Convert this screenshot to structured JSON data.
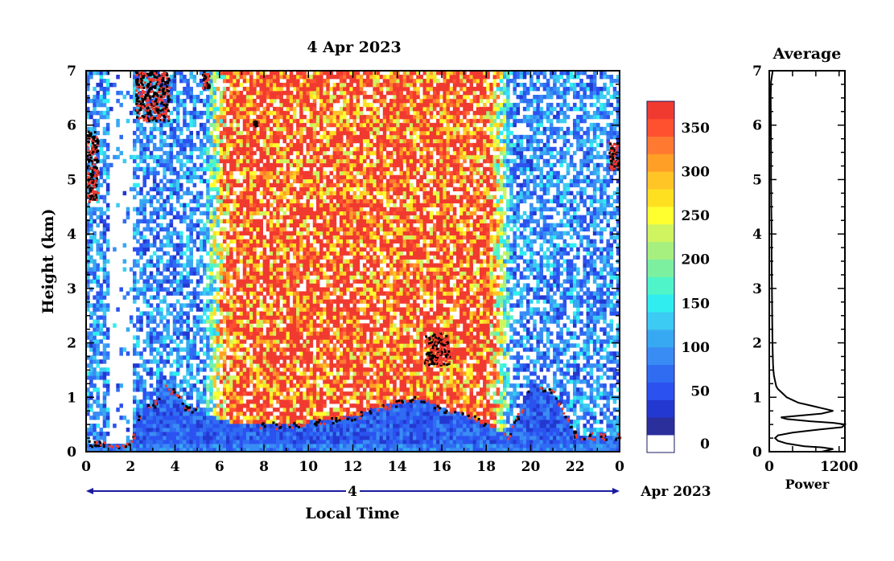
{
  "chart_data": [
    {
      "type": "heatmap",
      "title": "4 Apr 2023",
      "ylabel": "Height (km)",
      "xlabel": "Local Time",
      "xlim": [
        0,
        24
      ],
      "ylim": [
        0,
        7
      ],
      "x_ticks": [
        "0",
        "2",
        "4",
        "6",
        "8",
        "10",
        "12",
        "14",
        "16",
        "18",
        "20",
        "22",
        "0"
      ],
      "y_ticks": [
        "0",
        "1",
        "2",
        "3",
        "4",
        "5",
        "6",
        "7"
      ],
      "date_axis": {
        "day_label": "4",
        "month_label": "Apr 2023"
      },
      "colorbar": {
        "ticks": [
          "0",
          "50",
          "100",
          "150",
          "200",
          "250",
          "300",
          "350"
        ],
        "range": [
          0,
          380
        ],
        "colors": [
          "#ffffff",
          "#2b2f9c",
          "#2338d0",
          "#2b52f0",
          "#2f6cf2",
          "#3a8cf5",
          "#37a9f2",
          "#3ccbf2",
          "#30eef0",
          "#4ff5c8",
          "#7df0a0",
          "#a6f080",
          "#cff460",
          "#ffff30",
          "#ffe020",
          "#ffc526",
          "#ff9f26",
          "#ff7a30",
          "#ff5030",
          "#f03a30"
        ]
      },
      "features": {
        "background_level": 90,
        "daytime_peak_level": 370,
        "daytime_interval_hours": [
          6.5,
          18
        ],
        "boundary_layer_top_km": [
          [
            0,
            0.15
          ],
          [
            0.5,
            0.15
          ],
          [
            1,
            0.15
          ],
          [
            1.5,
            0.12
          ],
          [
            2,
            0.15
          ],
          [
            2.5,
            0.85
          ],
          [
            3,
            0.85
          ],
          [
            3.5,
            1.2
          ],
          [
            4,
            1.1
          ],
          [
            4.5,
            0.8
          ],
          [
            5,
            0.75
          ],
          [
            6,
            0.6
          ],
          [
            7,
            0.5
          ],
          [
            8,
            0.5
          ],
          [
            9,
            0.5
          ],
          [
            10,
            0.55
          ],
          [
            11,
            0.6
          ],
          [
            12,
            0.65
          ],
          [
            13,
            0.8
          ],
          [
            14,
            0.9
          ],
          [
            15,
            1.0
          ],
          [
            16,
            0.8
          ],
          [
            17,
            0.7
          ],
          [
            18,
            0.5
          ],
          [
            19,
            0.3
          ],
          [
            20,
            1.2
          ],
          [
            21,
            1.1
          ],
          [
            22,
            0.3
          ],
          [
            23,
            0.3
          ],
          [
            24,
            0.3
          ]
        ],
        "cloud_layers": [
          {
            "t": [
              0,
              0.5
            ],
            "h": [
              4.6,
              5.9
            ]
          },
          {
            "t": [
              2.2,
              3.7
            ],
            "h": [
              6.1,
              7.0
            ]
          },
          {
            "t": [
              5.2,
              5.5
            ],
            "h": [
              6.7,
              7.0
            ]
          },
          {
            "t": [
              7.5,
              7.7
            ],
            "h": [
              6.0,
              6.1
            ]
          },
          {
            "t": [
              15.2,
              16.3
            ],
            "h": [
              1.6,
              2.2
            ]
          },
          {
            "t": [
              23.5,
              23.9
            ],
            "h": [
              5.2,
              5.7
            ]
          }
        ]
      }
    },
    {
      "type": "line",
      "title": "Average",
      "xlabel": "Power",
      "xlim": [
        0,
        1300
      ],
      "ylim": [
        0,
        7
      ],
      "x_ticks": [
        "0",
        "1200"
      ],
      "y_ticks": [
        "0",
        "1",
        "2",
        "3",
        "4",
        "5",
        "6",
        "7"
      ],
      "points": [
        [
          900,
          0.0
        ],
        [
          1100,
          0.05
        ],
        [
          900,
          0.08
        ],
        [
          600,
          0.1
        ],
        [
          300,
          0.15
        ],
        [
          150,
          0.2
        ],
        [
          100,
          0.25
        ],
        [
          150,
          0.3
        ],
        [
          400,
          0.35
        ],
        [
          800,
          0.4
        ],
        [
          1250,
          0.45
        ],
        [
          1300,
          0.5
        ],
        [
          1100,
          0.53
        ],
        [
          700,
          0.56
        ],
        [
          300,
          0.6
        ],
        [
          200,
          0.63
        ],
        [
          500,
          0.66
        ],
        [
          900,
          0.7
        ],
        [
          1100,
          0.75
        ],
        [
          900,
          0.8
        ],
        [
          700,
          0.85
        ],
        [
          500,
          0.9
        ],
        [
          400,
          0.95
        ],
        [
          300,
          1.0
        ],
        [
          250,
          1.05
        ],
        [
          200,
          1.1
        ],
        [
          150,
          1.15
        ],
        [
          120,
          1.2
        ],
        [
          100,
          1.3
        ],
        [
          80,
          1.4
        ],
        [
          70,
          1.5
        ],
        [
          65,
          1.6
        ],
        [
          60,
          1.8
        ],
        [
          55,
          2.0
        ],
        [
          50,
          2.5
        ],
        [
          45,
          3.0
        ],
        [
          40,
          3.5
        ],
        [
          40,
          4.0
        ],
        [
          35,
          4.5
        ],
        [
          30,
          5.0
        ],
        [
          30,
          5.5
        ],
        [
          28,
          6.0
        ],
        [
          25,
          6.5
        ],
        [
          30,
          6.8
        ],
        [
          60,
          7.0
        ]
      ]
    }
  ]
}
